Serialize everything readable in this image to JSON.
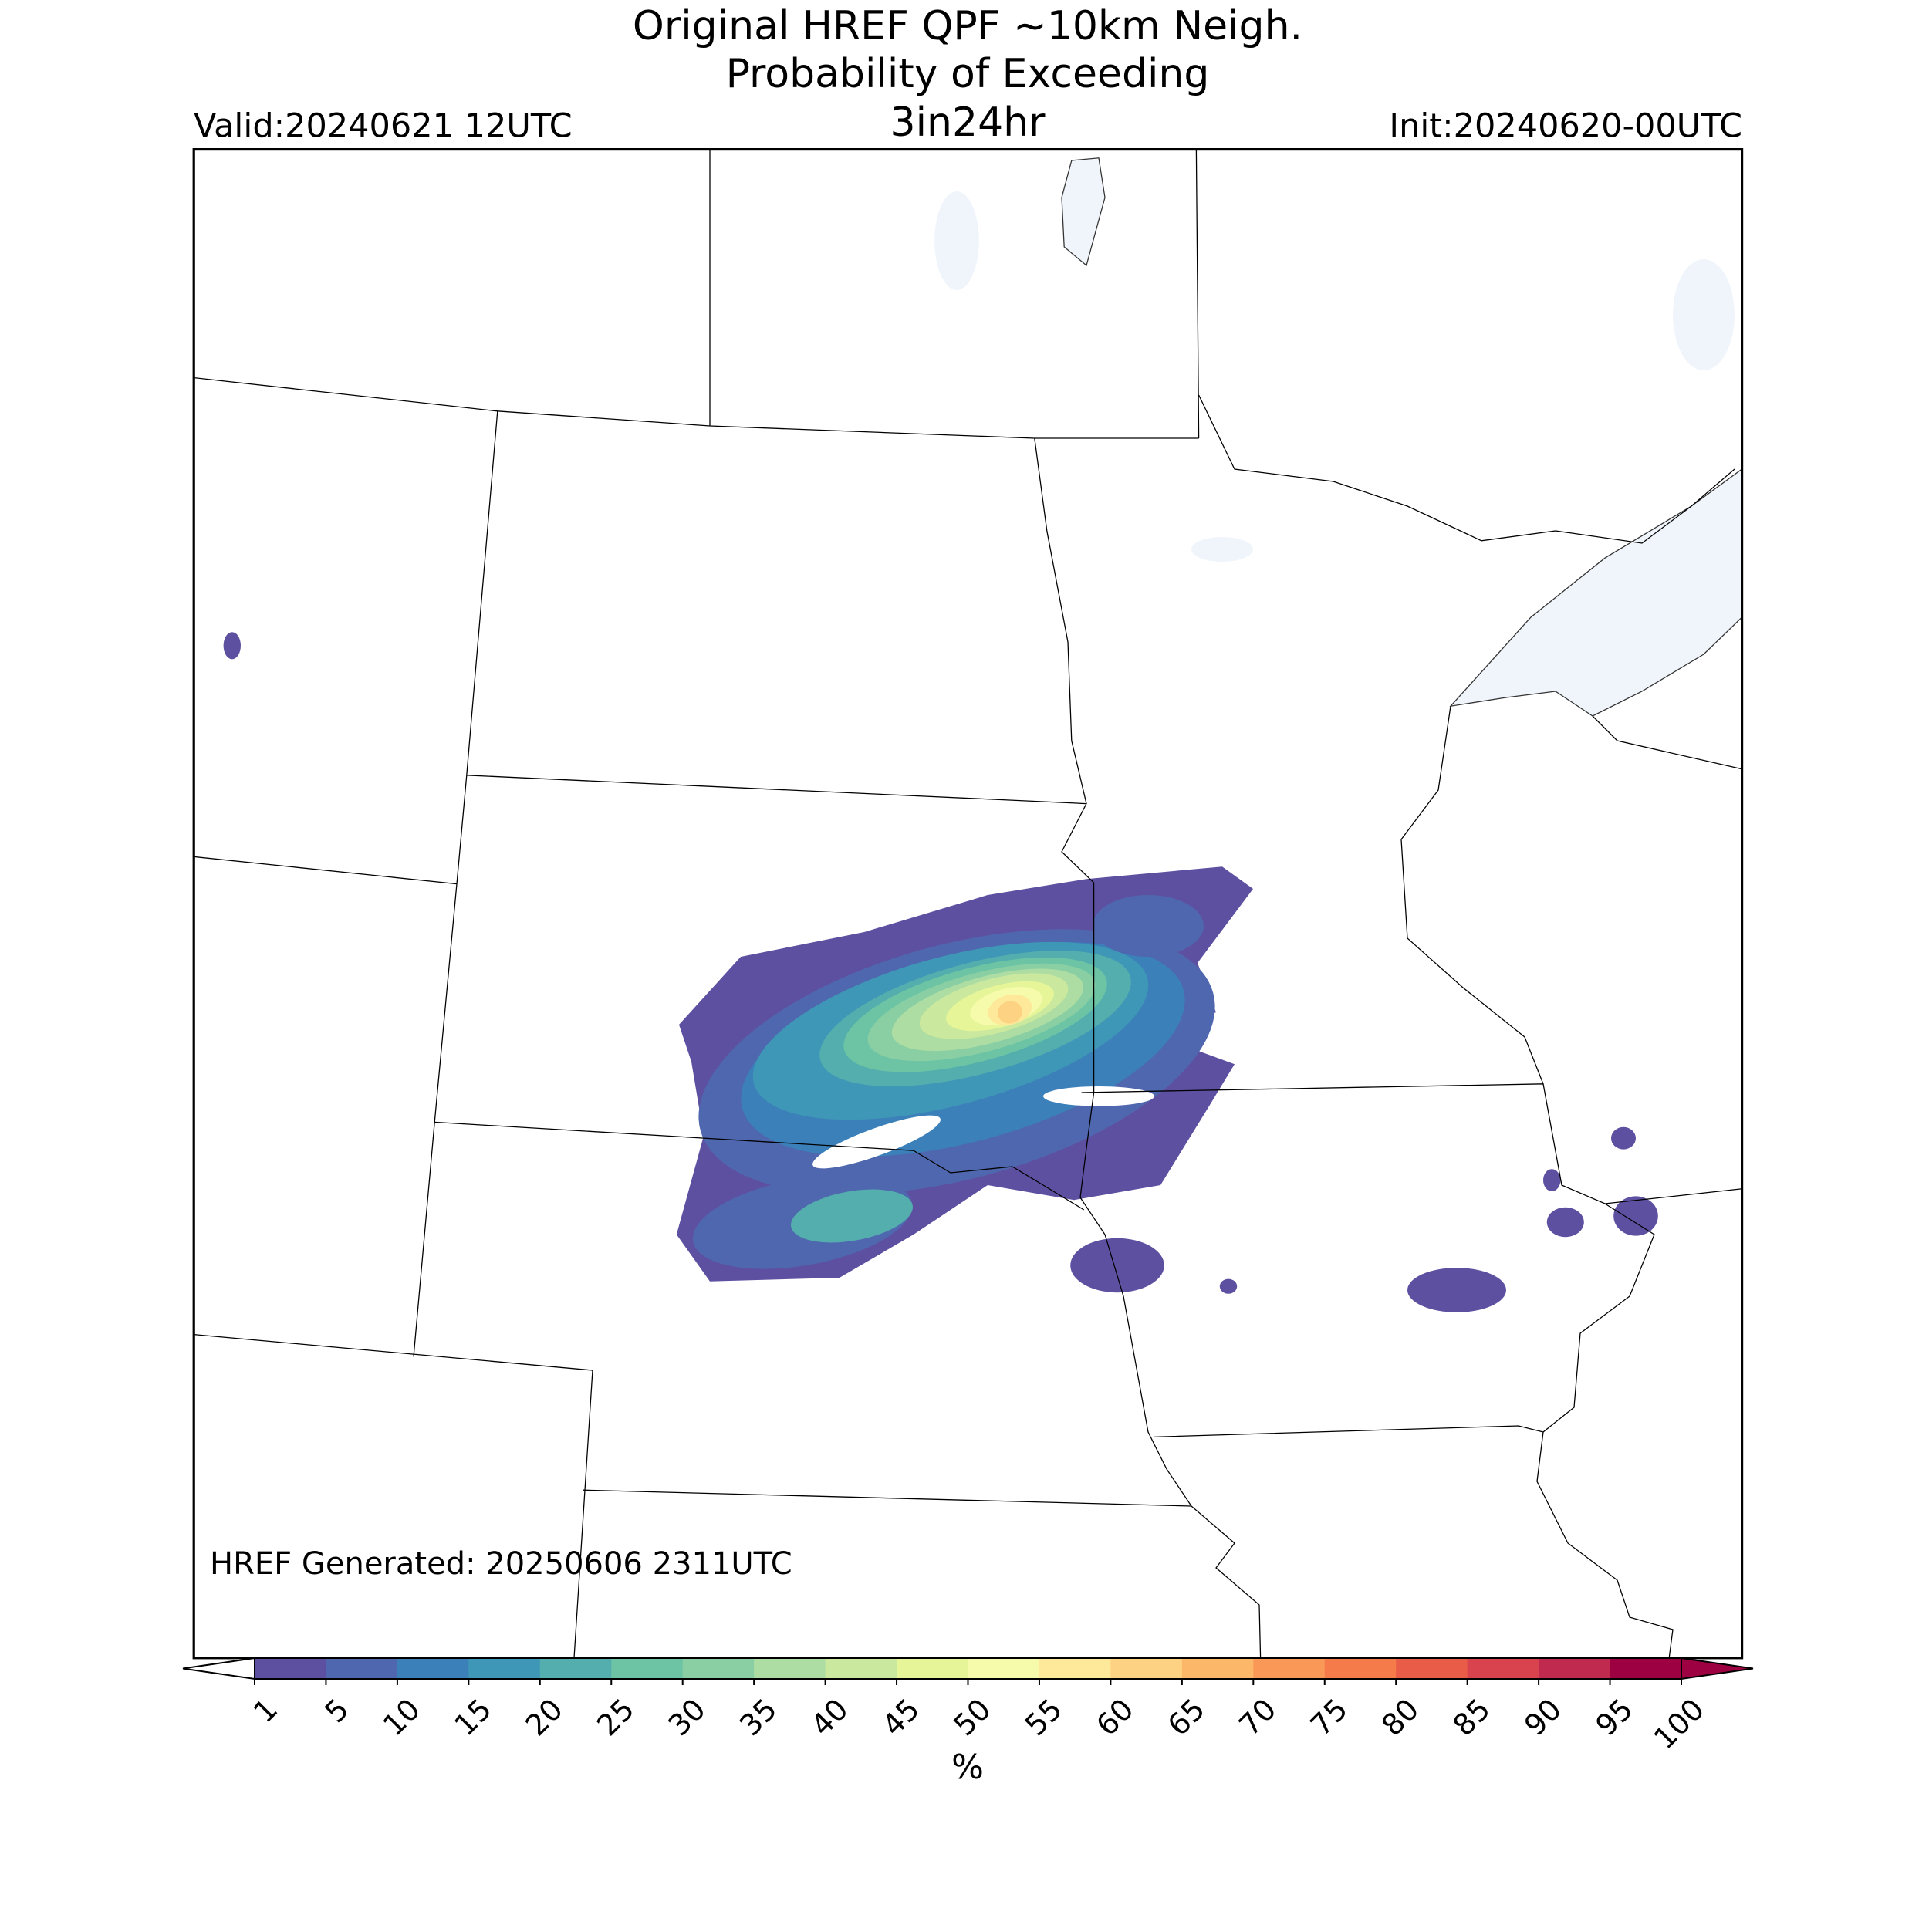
{
  "header": {
    "title_lines": [
      "Original HREF QPF ~10km Neigh.",
      "Probability of Exceeding",
      "3in24hr"
    ],
    "valid": "Valid:20240621 12UTC",
    "init": "Init:20240620-00UTC"
  },
  "annotation": "HREF Generated: 20250606 2311UTC",
  "colorbar": {
    "ticks": [
      1,
      5,
      10,
      15,
      20,
      25,
      30,
      35,
      40,
      45,
      50,
      55,
      60,
      65,
      70,
      75,
      80,
      85,
      90,
      95,
      100
    ],
    "colors": [
      "#5e50a1",
      "#4f67ae",
      "#3b80b9",
      "#3f97b7",
      "#53aead",
      "#6cc4a4",
      "#8acfa4",
      "#addda2",
      "#cbe99e",
      "#e6f598",
      "#f6faab",
      "#fee89a",
      "#fed283",
      "#fdb769",
      "#fa9857",
      "#f67b4a",
      "#e95c47",
      "#d8434e",
      "#c02a4f",
      "#9e0142"
    ],
    "extend_colors": [
      "#ffffff",
      "#9e0142"
    ],
    "label": "%"
  }
}
